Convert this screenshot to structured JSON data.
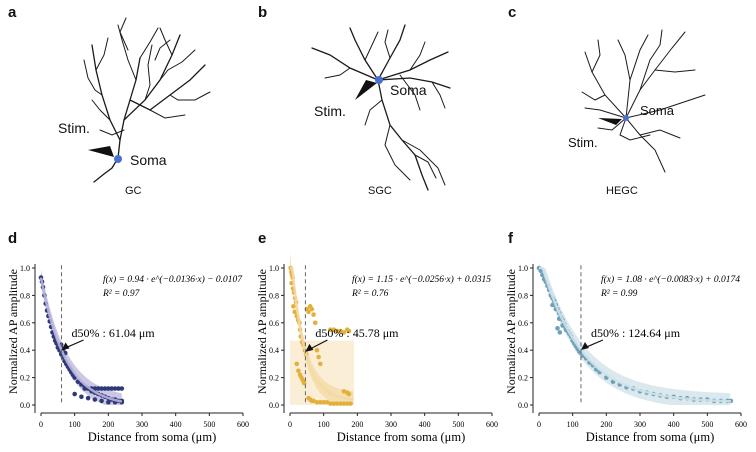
{
  "panels_top": [
    {
      "letter": "a",
      "cell": "GC",
      "stim": "Stim.",
      "soma": "Soma",
      "soma_color": "#4a6fd0"
    },
    {
      "letter": "b",
      "cell": "SGC",
      "stim": "Stim.",
      "soma": "Soma",
      "soma_color": "#4a6fd0"
    },
    {
      "letter": "c",
      "cell": "HEGC",
      "stim": "Stim.",
      "soma": "Soma",
      "soma_color": "#4a6fd0"
    }
  ],
  "chart_data": [
    {
      "type": "scatter",
      "panel": "d",
      "ylabel": "Normalized AP amplitude",
      "xlabel": "Distance from soma (μm)",
      "xlim": [
        0,
        600
      ],
      "ylim": [
        0,
        1.0
      ],
      "xticks": [
        0,
        100,
        200,
        300,
        400,
        500,
        600
      ],
      "yticks": [
        0.0,
        0.2,
        0.4,
        0.6,
        0.8,
        1.0
      ],
      "xticks_text": [
        "0",
        "100",
        "200",
        "300",
        "400",
        "500",
        "600"
      ],
      "yticks_text": [
        "0.0",
        "0.2",
        "0.4",
        "0.6",
        "0.8",
        "1.0"
      ],
      "color": "#2e3a78",
      "band_color": "#b9b4dc",
      "equation": "f(x) = 0.94 · e^(−0.0136·x) − 0.0107",
      "r2": "R² = 0.97",
      "fit": {
        "a": 0.94,
        "b": 0.0136,
        "c": -0.0107,
        "xmax": 240
      },
      "d50": {
        "label": "d50% : 61.04 μm",
        "x": 61.04
      },
      "points": [
        [
          0,
          0.93
        ],
        [
          3,
          0.9
        ],
        [
          6,
          0.86
        ],
        [
          10,
          0.8
        ],
        [
          14,
          0.74
        ],
        [
          18,
          0.69
        ],
        [
          22,
          0.65
        ],
        [
          26,
          0.61
        ],
        [
          30,
          0.57
        ],
        [
          34,
          0.53
        ],
        [
          38,
          0.5
        ],
        [
          42,
          0.47
        ],
        [
          46,
          0.45
        ],
        [
          50,
          0.42
        ],
        [
          55,
          0.4
        ],
        [
          60,
          0.37
        ],
        [
          65,
          0.35
        ],
        [
          70,
          0.32
        ],
        [
          75,
          0.3
        ],
        [
          80,
          0.28
        ],
        [
          85,
          0.26
        ],
        [
          90,
          0.24
        ],
        [
          95,
          0.22
        ],
        [
          100,
          0.2
        ],
        [
          110,
          0.17
        ],
        [
          120,
          0.15
        ],
        [
          130,
          0.13
        ],
        [
          140,
          0.12
        ],
        [
          150,
          0.1
        ],
        [
          160,
          0.09
        ],
        [
          170,
          0.08
        ],
        [
          180,
          0.07
        ],
        [
          190,
          0.06
        ],
        [
          200,
          0.05
        ],
        [
          210,
          0.04
        ],
        [
          220,
          0.04
        ],
        [
          230,
          0.03
        ],
        [
          240,
          0.03
        ],
        [
          130,
          0.12
        ],
        [
          140,
          0.12
        ],
        [
          150,
          0.12
        ],
        [
          160,
          0.12
        ],
        [
          170,
          0.12
        ],
        [
          180,
          0.12
        ],
        [
          190,
          0.12
        ],
        [
          200,
          0.12
        ],
        [
          210,
          0.12
        ],
        [
          220,
          0.12
        ],
        [
          230,
          0.12
        ],
        [
          240,
          0.12
        ],
        [
          100,
          0.08
        ],
        [
          120,
          0.06
        ],
        [
          140,
          0.05
        ],
        [
          160,
          0.04
        ],
        [
          180,
          0.03
        ],
        [
          200,
          0.02
        ],
        [
          220,
          0.02
        ],
        [
          240,
          0.02
        ],
        [
          60,
          0.44
        ],
        [
          66,
          0.41
        ],
        [
          72,
          0.38
        ]
      ]
    },
    {
      "type": "scatter",
      "panel": "e",
      "ylabel": "Normalized AP amplitude",
      "xlabel": "Distance from soma (μm)",
      "xlim": [
        0,
        600
      ],
      "ylim": [
        0,
        1.0
      ],
      "xticks": [
        0,
        100,
        200,
        300,
        400,
        500,
        600
      ],
      "yticks": [
        0.0,
        0.2,
        0.4,
        0.6,
        0.8,
        1.0
      ],
      "xticks_text": [
        "0",
        "100",
        "200",
        "300",
        "400",
        "500",
        "600"
      ],
      "yticks_text": [
        "0.0",
        "0.2",
        "0.4",
        "0.6",
        "0.8",
        "1.0"
      ],
      "color": "#e3b03c",
      "band_color": "#f3d9a4",
      "equation": "f(x) = 1.15 · e^(−0.0256·x) + 0.0315",
      "r2": "R² = 0.76",
      "fit": {
        "a": 1.15,
        "b": 0.0256,
        "c": 0.0315,
        "xmax": 190
      },
      "d50": {
        "label": "d50% : 45.78 μm",
        "x": 45.78
      },
      "points": [
        [
          2,
          1.0
        ],
        [
          4,
          0.97
        ],
        [
          6,
          0.95
        ],
        [
          8,
          0.93
        ],
        [
          5,
          0.89
        ],
        [
          9,
          0.85
        ],
        [
          12,
          0.82
        ],
        [
          15,
          0.78
        ],
        [
          18,
          0.75
        ],
        [
          10,
          0.72
        ],
        [
          14,
          0.68
        ],
        [
          20,
          0.65
        ],
        [
          24,
          0.62
        ],
        [
          28,
          0.6
        ],
        [
          30,
          0.55
        ],
        [
          32,
          0.5
        ],
        [
          36,
          0.46
        ],
        [
          40,
          0.44
        ],
        [
          44,
          0.4
        ],
        [
          48,
          0.37
        ],
        [
          20,
          0.3
        ],
        [
          25,
          0.25
        ],
        [
          30,
          0.22
        ],
        [
          34,
          0.2
        ],
        [
          38,
          0.18
        ],
        [
          42,
          0.16
        ],
        [
          50,
          0.7
        ],
        [
          55,
          0.68
        ],
        [
          60,
          0.72
        ],
        [
          65,
          0.7
        ],
        [
          70,
          0.66
        ],
        [
          75,
          0.6
        ],
        [
          80,
          0.4
        ],
        [
          85,
          0.35
        ],
        [
          90,
          0.3
        ],
        [
          70,
          0.03
        ],
        [
          80,
          0.02
        ],
        [
          90,
          0.02
        ],
        [
          100,
          0.02
        ],
        [
          110,
          0.02
        ],
        [
          120,
          0.01
        ],
        [
          130,
          0.01
        ],
        [
          140,
          0.01
        ],
        [
          150,
          0.01
        ],
        [
          160,
          0.01
        ],
        [
          170,
          0.01
        ],
        [
          180,
          0.01
        ],
        [
          120,
          0.55
        ],
        [
          130,
          0.55
        ],
        [
          140,
          0.54
        ],
        [
          150,
          0.54
        ],
        [
          160,
          0.53
        ],
        [
          170,
          0.55
        ],
        [
          175,
          0.54
        ],
        [
          160,
          0.1
        ],
        [
          170,
          0.09
        ],
        [
          175,
          0.08
        ],
        [
          55,
          0.05
        ],
        [
          60,
          0.04
        ],
        [
          65,
          0.03
        ]
      ]
    },
    {
      "type": "scatter",
      "panel": "f",
      "ylabel": "Normalized AP amplitude",
      "xlabel": "Distance from soma (μm)",
      "xlim": [
        0,
        600
      ],
      "ylim": [
        0,
        1.0
      ],
      "xticks": [
        0,
        100,
        200,
        300,
        400,
        500,
        600
      ],
      "yticks": [
        0.0,
        0.2,
        0.4,
        0.6,
        0.8,
        1.0
      ],
      "xticks_text": [
        "0",
        "100",
        "200",
        "300",
        "400",
        "500",
        "600"
      ],
      "yticks_text": [
        "0.0",
        "0.2",
        "0.4",
        "0.6",
        "0.8",
        "1.0"
      ],
      "color": "#6fa1b8",
      "band_color": "#cfe2ea",
      "equation": "f(x) = 1.08 · e^(−0.0083·x) + 0.0174",
      "r2": "R² = 0.99",
      "fit": {
        "a": 1.08,
        "b": 0.0083,
        "c": 0.0174,
        "xmax": 570
      },
      "d50": {
        "label": "d50% : 124.64 μm",
        "x": 124.64
      },
      "points": [
        [
          0,
          1.0
        ],
        [
          5,
          0.98
        ],
        [
          10,
          0.95
        ],
        [
          15,
          0.92
        ],
        [
          20,
          0.9
        ],
        [
          25,
          0.87
        ],
        [
          30,
          0.84
        ],
        [
          35,
          0.8
        ],
        [
          40,
          0.78
        ],
        [
          45,
          0.76
        ],
        [
          50,
          0.73
        ],
        [
          55,
          0.7
        ],
        [
          60,
          0.67
        ],
        [
          65,
          0.64
        ],
        [
          70,
          0.62
        ],
        [
          75,
          0.59
        ],
        [
          80,
          0.56
        ],
        [
          85,
          0.54
        ],
        [
          90,
          0.52
        ],
        [
          95,
          0.5
        ],
        [
          100,
          0.47
        ],
        [
          105,
          0.45
        ],
        [
          110,
          0.43
        ],
        [
          115,
          0.41
        ],
        [
          120,
          0.39
        ],
        [
          125,
          0.38
        ],
        [
          130,
          0.36
        ],
        [
          140,
          0.34
        ],
        [
          150,
          0.31
        ],
        [
          160,
          0.29
        ],
        [
          170,
          0.26
        ],
        [
          180,
          0.24
        ],
        [
          200,
          0.2
        ],
        [
          220,
          0.17
        ],
        [
          240,
          0.15
        ],
        [
          260,
          0.13
        ],
        [
          280,
          0.12
        ],
        [
          300,
          0.1
        ],
        [
          320,
          0.09
        ],
        [
          340,
          0.08
        ],
        [
          360,
          0.07
        ],
        [
          380,
          0.06
        ],
        [
          400,
          0.06
        ],
        [
          420,
          0.05
        ],
        [
          440,
          0.05
        ],
        [
          460,
          0.04
        ],
        [
          480,
          0.04
        ],
        [
          500,
          0.04
        ],
        [
          520,
          0.03
        ],
        [
          540,
          0.03
        ],
        [
          560,
          0.03
        ],
        [
          570,
          0.03
        ],
        [
          40,
          0.73
        ],
        [
          50,
          0.7
        ],
        [
          60,
          0.63
        ],
        [
          70,
          0.58
        ],
        [
          80,
          0.55
        ],
        [
          55,
          0.56
        ],
        [
          62,
          0.53
        ]
      ]
    }
  ]
}
